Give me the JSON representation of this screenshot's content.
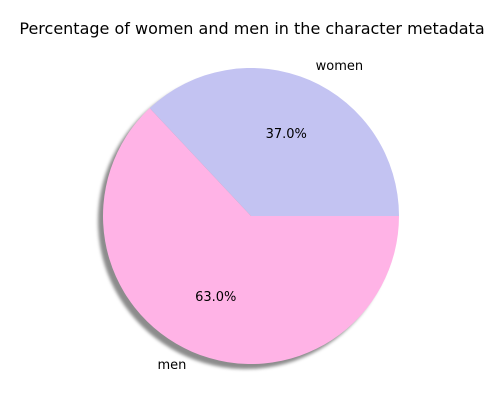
{
  "chart_data": {
    "type": "pie",
    "title": "Percentage of women and men in the character metadata",
    "categories": [
      "women",
      "men"
    ],
    "values": [
      37.0,
      63.0
    ],
    "percent_labels": [
      "37.0%",
      "63.0%"
    ],
    "colors": [
      "#c3c3f2",
      "#ffb3e6"
    ],
    "shadow": true,
    "start_angle_deg": 0,
    "direction": "counterclockwise"
  }
}
